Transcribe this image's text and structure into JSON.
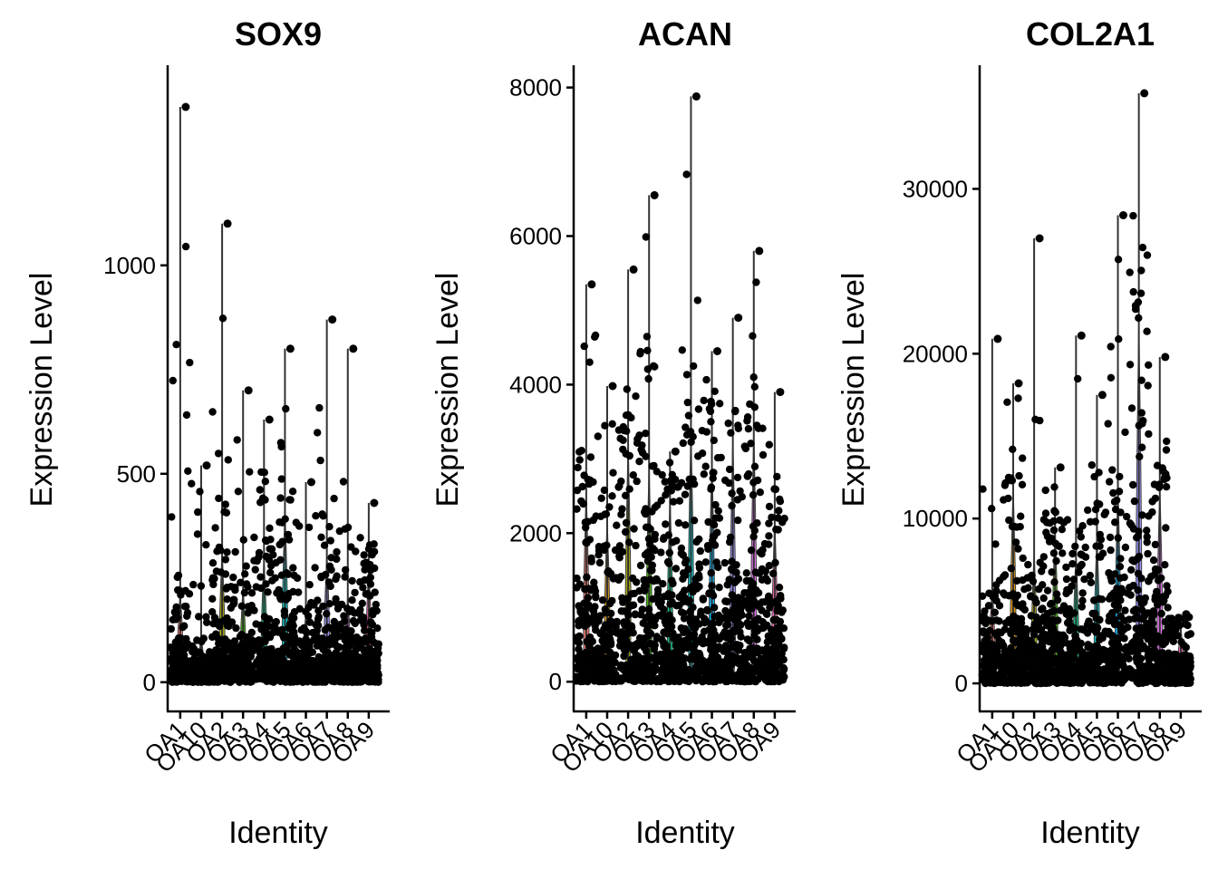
{
  "chart_data": [
    {
      "type": "violin",
      "title": "SOX9",
      "xlabel": "Identity",
      "ylabel": "Expression Level",
      "categories": [
        "OA1",
        "OA10",
        "OA2",
        "OA3",
        "OA4",
        "OA5",
        "OA6",
        "OA7",
        "OA8",
        "OA9"
      ],
      "yticks": [
        0,
        500,
        1000
      ],
      "ylim": [
        -70,
        1480
      ],
      "max_values": [
        1380,
        520,
        1100,
        700,
        630,
        800,
        480,
        870,
        800,
        430
      ],
      "typical_values": [
        220,
        110,
        320,
        230,
        300,
        420,
        170,
        310,
        210,
        280
      ],
      "series_colors": [
        "#F8766D",
        "#D89000",
        "#A3A500",
        "#39B600",
        "#00BF7D",
        "#00BFC4",
        "#00B0F6",
        "#9590FF",
        "#E76BF3",
        "#FF62BC"
      ]
    },
    {
      "type": "violin",
      "title": "ACAN",
      "xlabel": "Identity",
      "ylabel": "Expression Level",
      "categories": [
        "OA1",
        "OA10",
        "OA2",
        "OA3",
        "OA4",
        "OA5",
        "OA6",
        "OA7",
        "OA8",
        "OA9"
      ],
      "yticks": [
        0,
        2000,
        4000,
        6000,
        8000
      ],
      "ylim": [
        -400,
        8300
      ],
      "max_values": [
        5350,
        3980,
        5550,
        6550,
        3100,
        7880,
        4450,
        4900,
        5800,
        3900
      ],
      "typical_values": [
        2600,
        2200,
        3200,
        2900,
        2500,
        3400,
        3000,
        3300,
        3400,
        2200
      ],
      "series_colors": [
        "#F8766D",
        "#D89000",
        "#A3A500",
        "#39B600",
        "#00BF7D",
        "#00BFC4",
        "#00B0F6",
        "#9590FF",
        "#E76BF3",
        "#FF62BC"
      ]
    },
    {
      "type": "violin",
      "title": "COL2A1",
      "xlabel": "Identity",
      "ylabel": "Expression Level",
      "categories": [
        "OA1",
        "OA10",
        "OA2",
        "OA3",
        "OA4",
        "OA5",
        "OA6",
        "OA7",
        "OA8",
        "OA9"
      ],
      "yticks": [
        0,
        10000,
        20000,
        30000
      ],
      "ylim": [
        -1700,
        37500
      ],
      "max_values": [
        20900,
        18200,
        27000,
        13100,
        21100,
        17500,
        28400,
        35800,
        19800,
        4200
      ],
      "typical_values": [
        6000,
        12000,
        8000,
        9500,
        8000,
        9000,
        12000,
        22000,
        12000,
        3500
      ],
      "series_colors": [
        "#F8766D",
        "#D89000",
        "#A3A500",
        "#39B600",
        "#00BF7D",
        "#00BFC4",
        "#00B0F6",
        "#9590FF",
        "#E76BF3",
        "#FF62BC"
      ]
    }
  ]
}
